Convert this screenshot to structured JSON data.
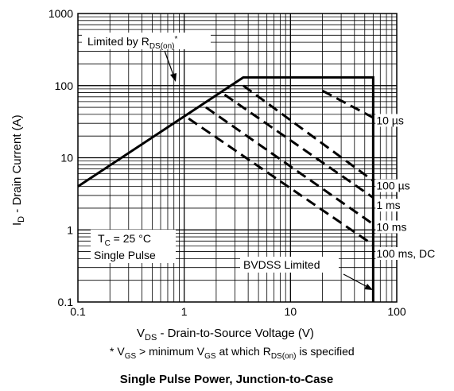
{
  "chart_data": {
    "type": "line",
    "title": "Single Pulse Power, Junction-to-Case",
    "xlabel": {
      "main": "V",
      "sub": "DS",
      "rest": " - Drain-to-Source Voltage (V)"
    },
    "ylabel": {
      "main": "I",
      "sub": "D",
      "rest": " - Drain Current (A)"
    },
    "x_scale": "log",
    "y_scale": "log",
    "xlim": [
      0.1,
      100
    ],
    "ylim": [
      0.1,
      1000
    ],
    "grid": true,
    "x_ticks": [
      {
        "value": 0.1,
        "label": "0.1"
      },
      {
        "value": 1,
        "label": "1"
      },
      {
        "value": 10,
        "label": "10"
      },
      {
        "value": 100,
        "label": "100"
      }
    ],
    "y_ticks": [
      {
        "value": 0.1,
        "label": "0.1"
      },
      {
        "value": 1,
        "label": "1"
      },
      {
        "value": 10,
        "label": "10"
      },
      {
        "value": 100,
        "label": "100"
      },
      {
        "value": 1000,
        "label": "1000"
      }
    ],
    "boundary": {
      "name": "Safe Operating Area boundary",
      "points": [
        {
          "x": 0.1,
          "y": 4
        },
        {
          "x": 3.6,
          "y": 130
        },
        {
          "x": 60,
          "y": 130
        },
        {
          "x": 60,
          "y": 0.1
        }
      ]
    },
    "pulse_lines": [
      {
        "label": "10 µs",
        "points": [
          {
            "x": 20,
            "y": 85
          },
          {
            "x": 60,
            "y": 36
          }
        ]
      },
      {
        "label": "100  µs",
        "points": [
          {
            "x": 3.6,
            "y": 100
          },
          {
            "x": 60,
            "y": 4.8
          }
        ]
      },
      {
        "label": "1 ms",
        "points": [
          {
            "x": 2.4,
            "y": 75
          },
          {
            "x": 60,
            "y": 2.8
          }
        ]
      },
      {
        "label": "10 ms",
        "points": [
          {
            "x": 1.6,
            "y": 50
          },
          {
            "x": 60,
            "y": 1.2
          }
        ]
      },
      {
        "label": "100 ms, DC",
        "points": [
          {
            "x": 1.1,
            "y": 35
          },
          {
            "x": 60,
            "y": 0.62
          }
        ]
      }
    ],
    "pulse_label_y": [
      33,
      4.1,
      2.2,
      1.1,
      0.47
    ],
    "annotations": {
      "limited_by": {
        "prefix": "Limited by R",
        "sub": "DS(on)",
        "suffix": "*"
      },
      "tc": {
        "prefix": "T",
        "sub": "C",
        "suffix": " = 25 °C"
      },
      "single_pulse": "Single Pulse",
      "bvdss": "BVDSS Limited"
    },
    "footnote": {
      "star": "* ",
      "v1": "V",
      "v1sub": "GS",
      "mid": " > minimum V",
      "v2sub": "GS",
      "mid2": " at which R",
      "rsub": "DS(on)",
      "end": " is specified"
    }
  }
}
